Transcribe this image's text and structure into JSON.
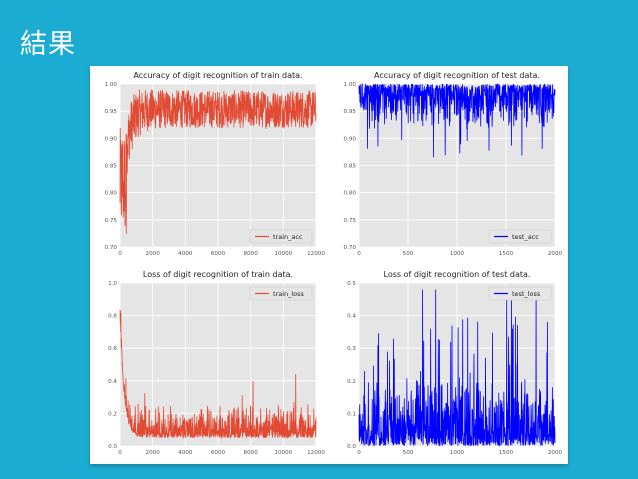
{
  "slide": {
    "title": "結果"
  },
  "colors": {
    "background": "#1cacd3",
    "train": "#e24a33",
    "test": "#0000ff",
    "plot_bg": "#e5e5e5"
  },
  "chart_data": [
    {
      "type": "line",
      "title": "Accuracy of digit recognition of train data.",
      "xlim": [
        0,
        12000
      ],
      "ylim": [
        0.7,
        1.0
      ],
      "xticks": [
        0,
        2000,
        4000,
        6000,
        8000,
        10000,
        12000
      ],
      "yticks": [
        "0.70",
        "0.75",
        "0.80",
        "0.85",
        "0.90",
        "0.95",
        "1.00"
      ],
      "grid": true,
      "legend_position": "lower-right",
      "series": [
        {
          "name": "train_acc",
          "color": "#e24a33",
          "style": "noisy-rising",
          "start": 0.72,
          "plateau": 0.95,
          "noise_low": 0.9,
          "noise_high": 1.0
        }
      ]
    },
    {
      "type": "line",
      "title": "Accuracy of digit recognition of test data.",
      "xlim": [
        0,
        2000
      ],
      "ylim": [
        0.7,
        1.0
      ],
      "xticks": [
        0,
        500,
        1000,
        1500,
        2000
      ],
      "yticks": [
        "0.70",
        "0.75",
        "0.80",
        "0.85",
        "0.90",
        "0.95",
        "1.00"
      ],
      "grid": true,
      "legend_position": "lower-right",
      "series": [
        {
          "name": "test_acc",
          "color": "#0000ff",
          "style": "noisy-flat",
          "mean": 0.97,
          "min": 0.86,
          "max": 1.0
        }
      ]
    },
    {
      "type": "line",
      "title": "Loss of digit recognition of train data.",
      "xlim": [
        0,
        12000
      ],
      "ylim": [
        0.0,
        1.0
      ],
      "xticks": [
        0,
        2000,
        4000,
        6000,
        8000,
        10000,
        12000
      ],
      "yticks": [
        "0.0",
        "0.2",
        "0.4",
        "0.6",
        "0.8",
        "1.0"
      ],
      "grid": true,
      "legend_position": "top-right",
      "series": [
        {
          "name": "train_loss",
          "color": "#e24a33",
          "style": "noisy-decay",
          "start": 0.78,
          "floor": 0.05,
          "max_spike": 0.42
        }
      ]
    },
    {
      "type": "line",
      "title": "Loss of digit recognition of test data.",
      "xlim": [
        0,
        2000
      ],
      "ylim": [
        0.0,
        0.5
      ],
      "xticks": [
        0,
        500,
        1000,
        1500,
        2000
      ],
      "yticks": [
        "0.0",
        "0.1",
        "0.2",
        "0.3",
        "0.4",
        "0.5"
      ],
      "grid": true,
      "legend_position": "top-right",
      "series": [
        {
          "name": "test_loss",
          "color": "#0000ff",
          "style": "noisy-flat-loss",
          "mean": 0.08,
          "min": 0.0,
          "max": 0.48
        }
      ]
    }
  ]
}
